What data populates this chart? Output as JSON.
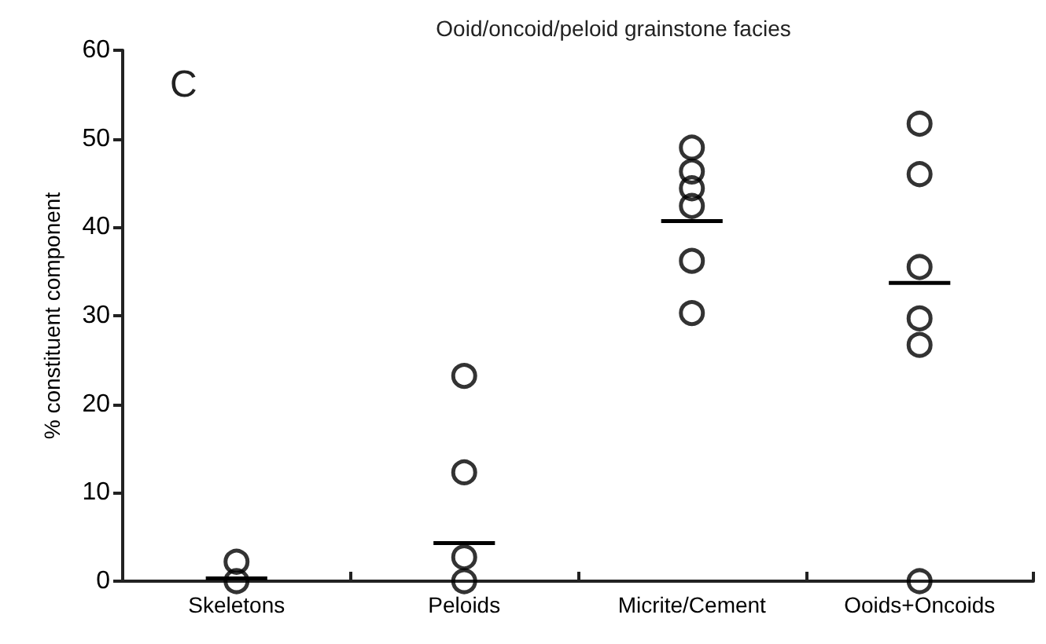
{
  "chart_data": {
    "type": "scatter",
    "title": "Ooid/oncoid/peloid grainstone facies",
    "ylabel": "% constituent component",
    "annotations": [
      "C"
    ],
    "categories": [
      "Skeletons",
      "Peloids",
      "Micrite/Cement",
      "Ooids+Oncoids"
    ],
    "series": [
      {
        "color": "#000000",
        "marker": "circle",
        "x": [
          "Skeletons",
          "Skeletons",
          "Peloids",
          "Peloids",
          "Peloids",
          "Peloids",
          "Micrite/Cement",
          "Micrite/Cement",
          "Micrite/Cement",
          "Micrite/Cement",
          "Micrite/Cement",
          "Micrite/Cement",
          "Ooids+Oncoids",
          "Ooids+Oncoids",
          "Ooids+Oncoids",
          "Ooids+Oncoids",
          "Ooids+Oncoids",
          "Ooids+Oncoids"
        ],
        "values": [
          2.2,
          0,
          23.2,
          12.3,
          2.7,
          0,
          49,
          46.3,
          44.4,
          42.4,
          36.2,
          30.3,
          51.7,
          46,
          35.5,
          29.7,
          26.7,
          0
        ]
      },
      {
        "color": "#000000",
        "type": "bar",
        "base": [
          0.3,
          4.3,
          40.7,
          33.7
        ],
        "values": [
          0,
          0,
          0,
          0
        ]
      }
    ],
    "ylim": [
      0,
      60
    ],
    "yticks": [
      0,
      10,
      20,
      30,
      40,
      50,
      60
    ],
    "grid": false
  }
}
